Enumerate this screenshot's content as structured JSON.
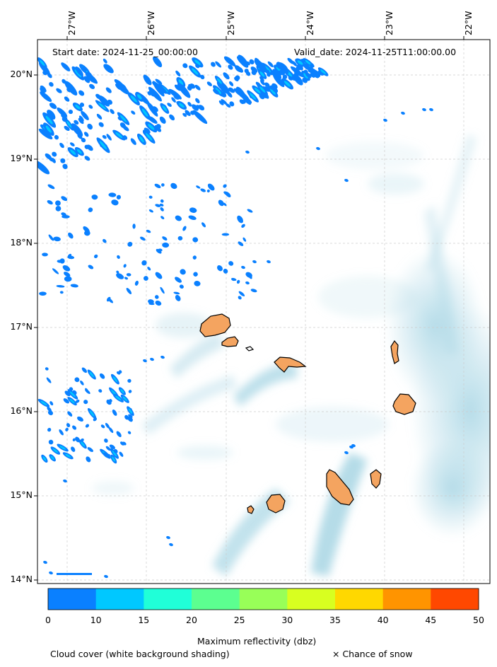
{
  "header": {
    "start_label": "Start date: 2024-11-25_00:00:00",
    "valid_label": "Valid_date: 2024-11-25T11:00:00.00"
  },
  "axes": {
    "lon_ticks": [
      "27°W",
      "26°W",
      "25°W",
      "24°W",
      "23°W",
      "22°W"
    ],
    "lat_ticks": [
      "20°N",
      "19°N",
      "18°N",
      "17°N",
      "16°N",
      "15°N",
      "14°N"
    ]
  },
  "colorbar": {
    "label": "Maximum reflectivity (dbz)",
    "ticks": [
      "0",
      "10",
      "15",
      "20",
      "25",
      "30",
      "35",
      "40",
      "45",
      "50"
    ],
    "colors": [
      "#0a80ff",
      "#00c8ff",
      "#20ffd8",
      "#5cff90",
      "#98ff58",
      "#d8ff20",
      "#ffd800",
      "#ff9400",
      "#ff4800"
    ]
  },
  "footer": {
    "cloud_note": "Cloud cover (white background shading)",
    "snow_note": "× Chance of snow"
  },
  "colors": {
    "cloud": "#add8e6",
    "land": "#f4a460",
    "coast": "#000000"
  }
}
